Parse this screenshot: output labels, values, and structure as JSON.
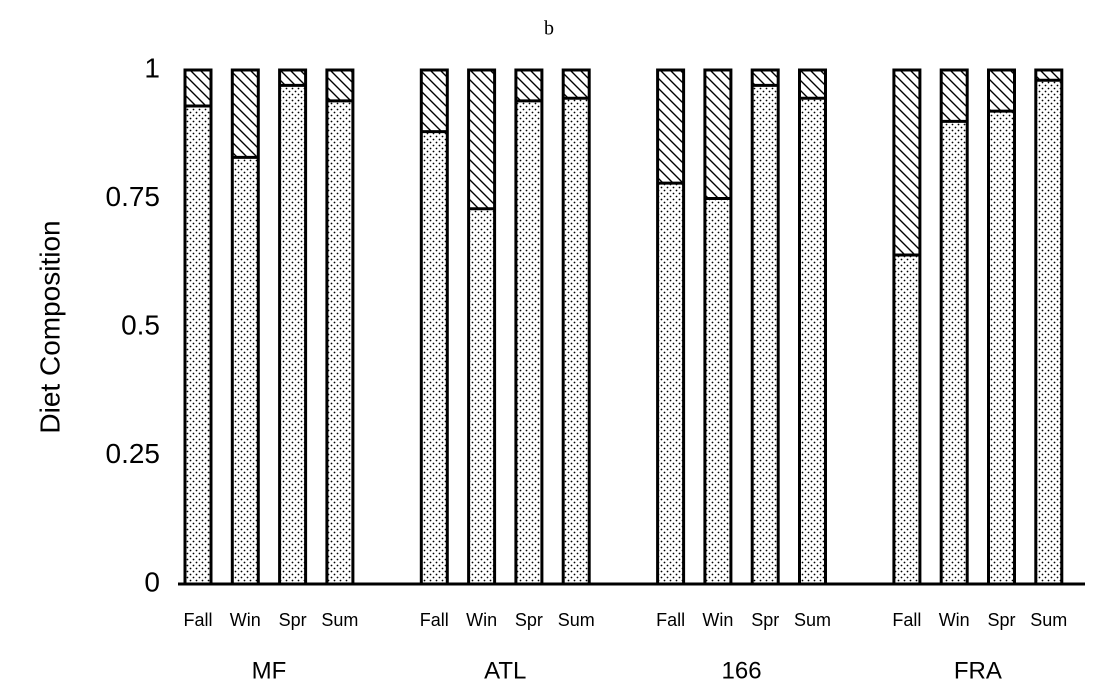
{
  "chart_data": {
    "type": "stacked_bar",
    "title": "b",
    "y_label": "Diet Composition",
    "groups": [
      "MF",
      "ATL",
      "166",
      "FRA"
    ],
    "categories": [
      "Fall",
      "Win",
      "Spr",
      "Sum",
      "Fall",
      "Win",
      "Spr",
      "Sum",
      "Fall",
      "Win",
      "Spr",
      "Sum",
      "Fall",
      "Win",
      "Spr",
      "Sum"
    ],
    "series": [
      {
        "pattern": "dots",
        "color": "#000000",
        "values": [
          0.93,
          0.83,
          0.97,
          0.94,
          0.88,
          0.73,
          0.94,
          0.945,
          0.78,
          0.75,
          0.97,
          0.945,
          0.64,
          0.9,
          0.92,
          0.98
        ]
      },
      {
        "pattern": "hatch",
        "color": "#000000",
        "values": [
          0.07,
          0.17,
          0.03,
          0.06,
          0.12,
          0.27,
          0.06,
          0.055,
          0.22,
          0.25,
          0.03,
          0.055,
          0.36,
          0.1,
          0.08,
          0.02
        ]
      }
    ],
    "ylim": [
      0,
      1
    ],
    "yticks": [
      0,
      0.25,
      0.5,
      0.75,
      1
    ]
  }
}
